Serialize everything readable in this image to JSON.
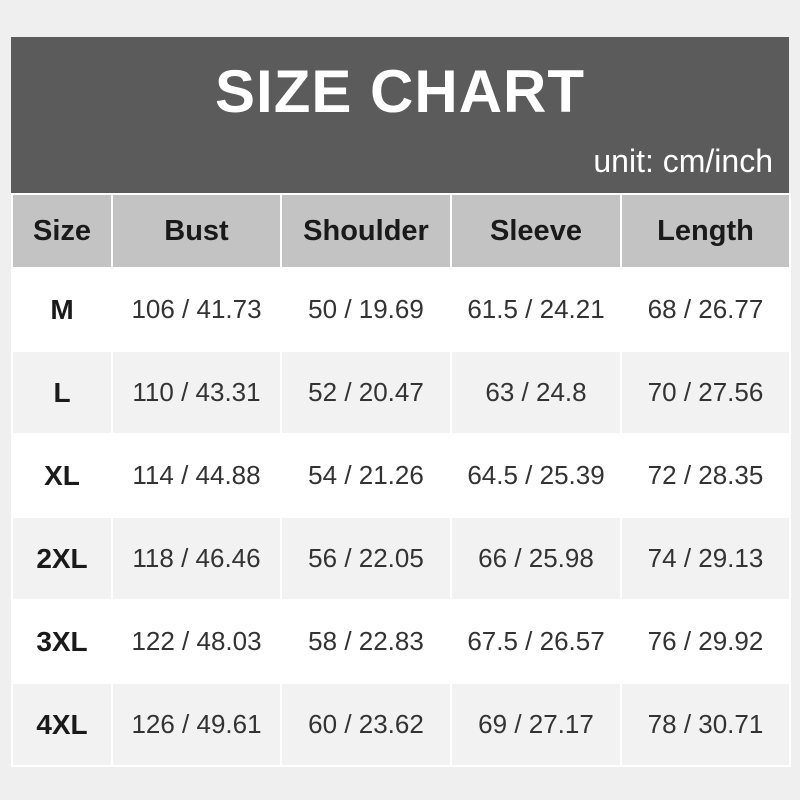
{
  "title": "SIZE CHART",
  "unit": "unit: cm/inch",
  "headers": [
    "Size",
    "Bust",
    "Shoulder",
    "Sleeve",
    "Length"
  ],
  "rows": [
    [
      "M",
      "106 / 41.73",
      "50 / 19.69",
      "61.5 / 24.21",
      "68 / 26.77"
    ],
    [
      "L",
      "110 / 43.31",
      "52 / 20.47",
      "63 / 24.8",
      "70 / 27.56"
    ],
    [
      "XL",
      "114 / 44.88",
      "54 / 21.26",
      "64.5 / 25.39",
      "72 / 28.35"
    ],
    [
      "2XL",
      "118 / 46.46",
      "56 / 22.05",
      "66 / 25.98",
      "74 / 29.13"
    ],
    [
      "3XL",
      "122 / 48.03",
      "58 / 22.83",
      "67.5 / 26.57",
      "76 / 29.92"
    ],
    [
      "4XL",
      "126 / 49.61",
      "60 / 23.62",
      "69 / 27.17",
      "78 / 30.71"
    ]
  ],
  "colors": {
    "banner": "#5b5b5b",
    "header_row": "#c3c3c3",
    "row_alt": "#f2f2f2"
  }
}
